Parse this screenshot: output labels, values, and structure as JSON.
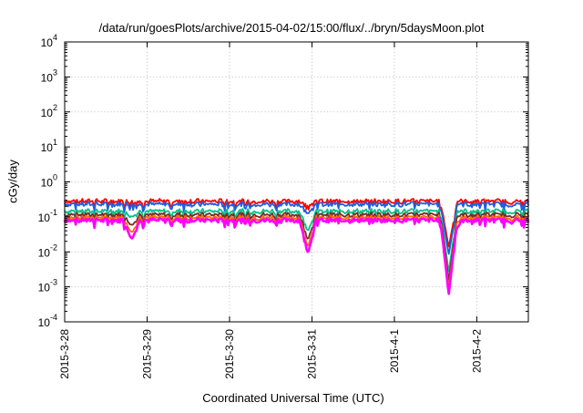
{
  "chart_data": {
    "type": "line",
    "title": "/data/run/goesPlots/archive/2015-04-02/15:00/flux/../bryn/5daysMoon.plot",
    "xlabel": "Coordinated Universal Time (UTC)",
    "ylabel": "cGy/day",
    "yscale": "log",
    "ylim": [
      0.0001,
      10000
    ],
    "xlim": [
      "2015-03-28 00:00",
      "2015-04-02 15:00"
    ],
    "grid": true,
    "legend": "none",
    "x_ticks": [
      "2015-3-28",
      "2015-3-29",
      "2015-3-30",
      "2015-3-31",
      "2015-4-1",
      "2015-4-2"
    ],
    "y_ticks": [
      {
        "base": "10",
        "exp": "-4",
        "value": 0.0001
      },
      {
        "base": "10",
        "exp": "-3",
        "value": 0.001
      },
      {
        "base": "10",
        "exp": "-2",
        "value": 0.01
      },
      {
        "base": "10",
        "exp": "-1",
        "value": 0.1
      },
      {
        "base": "10",
        "exp": "0",
        "value": 1
      },
      {
        "base": "10",
        "exp": "1",
        "value": 10
      },
      {
        "base": "10",
        "exp": "2",
        "value": 100
      },
      {
        "base": "10",
        "exp": "3",
        "value": 1000
      },
      {
        "base": "10",
        "exp": "4",
        "value": 10000
      }
    ],
    "series": [
      {
        "color": "#ff0000",
        "base": 0.28
      },
      {
        "color": "#1e5fe0",
        "base": 0.23
      },
      {
        "color": "#00c28a",
        "base": 0.145
      },
      {
        "color": "#7a2a2a",
        "base": 0.115
      },
      {
        "color": "#ff6a00",
        "base": 0.095
      },
      {
        "color": "#ff00ff",
        "base": 0.08
      }
    ],
    "dips": [
      {
        "x": "2015-03-28 19:30",
        "value": 0.023
      },
      {
        "x": "2015-03-30 22:50",
        "value": 0.009
      },
      {
        "x": "2015-04-01 15:50",
        "value": 0.0006
      },
      {
        "x": "2015-04-01 17:30",
        "value": 0.04
      }
    ]
  }
}
